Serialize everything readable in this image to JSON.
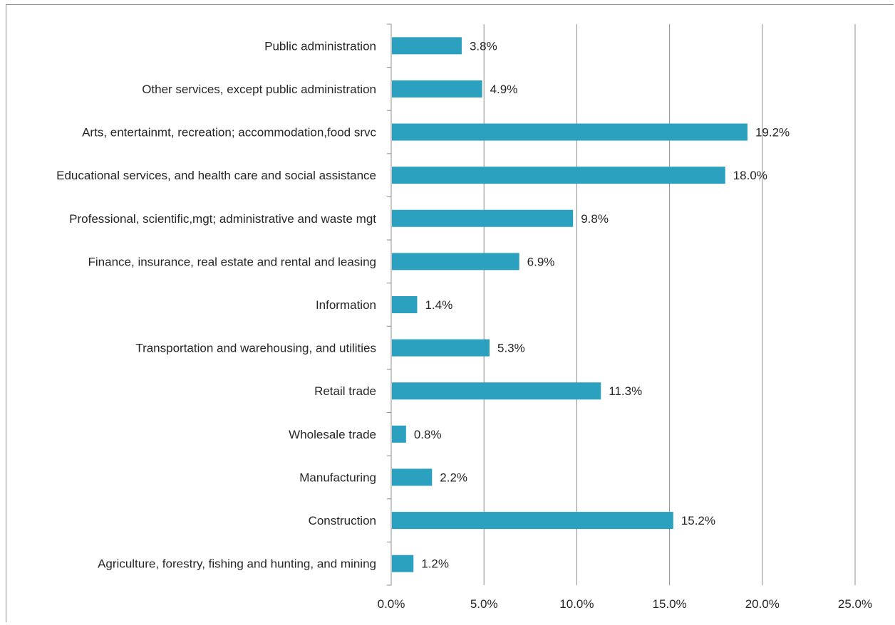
{
  "chart_data": {
    "type": "bar",
    "orientation": "horizontal",
    "categories": [
      "Public administration",
      "Other services, except public administration",
      "Arts, entertainmt, recreation; accommodation,food srvc",
      "Educational services, and health care and social assistance",
      "Professional, scientific,mgt; administrative and waste mgt",
      "Finance, insurance, real estate and rental and leasing",
      "Information",
      "Transportation and warehousing, and utilities",
      "Retail trade",
      "Wholesale trade",
      "Manufacturing",
      "Construction",
      "Agriculture, forestry, fishing and hunting, and mining"
    ],
    "values": [
      3.8,
      4.9,
      19.2,
      18.0,
      9.8,
      6.9,
      1.4,
      5.3,
      11.3,
      0.8,
      2.2,
      15.2,
      1.2
    ],
    "value_labels": [
      "3.8%",
      "4.9%",
      "19.2%",
      "18.0%",
      "9.8%",
      "6.9%",
      "1.4%",
      "5.3%",
      "11.3%",
      "0.8%",
      "2.2%",
      "15.2%",
      "1.2%"
    ],
    "xlim": [
      0,
      25
    ],
    "x_ticks": [
      0,
      5,
      10,
      15,
      20,
      25
    ],
    "x_tick_labels": [
      "0.0%",
      "5.0%",
      "10.0%",
      "15.0%",
      "20.0%",
      "25.0%"
    ],
    "grid": true,
    "legend": "none",
    "bar_color": "#2CA1BF"
  }
}
